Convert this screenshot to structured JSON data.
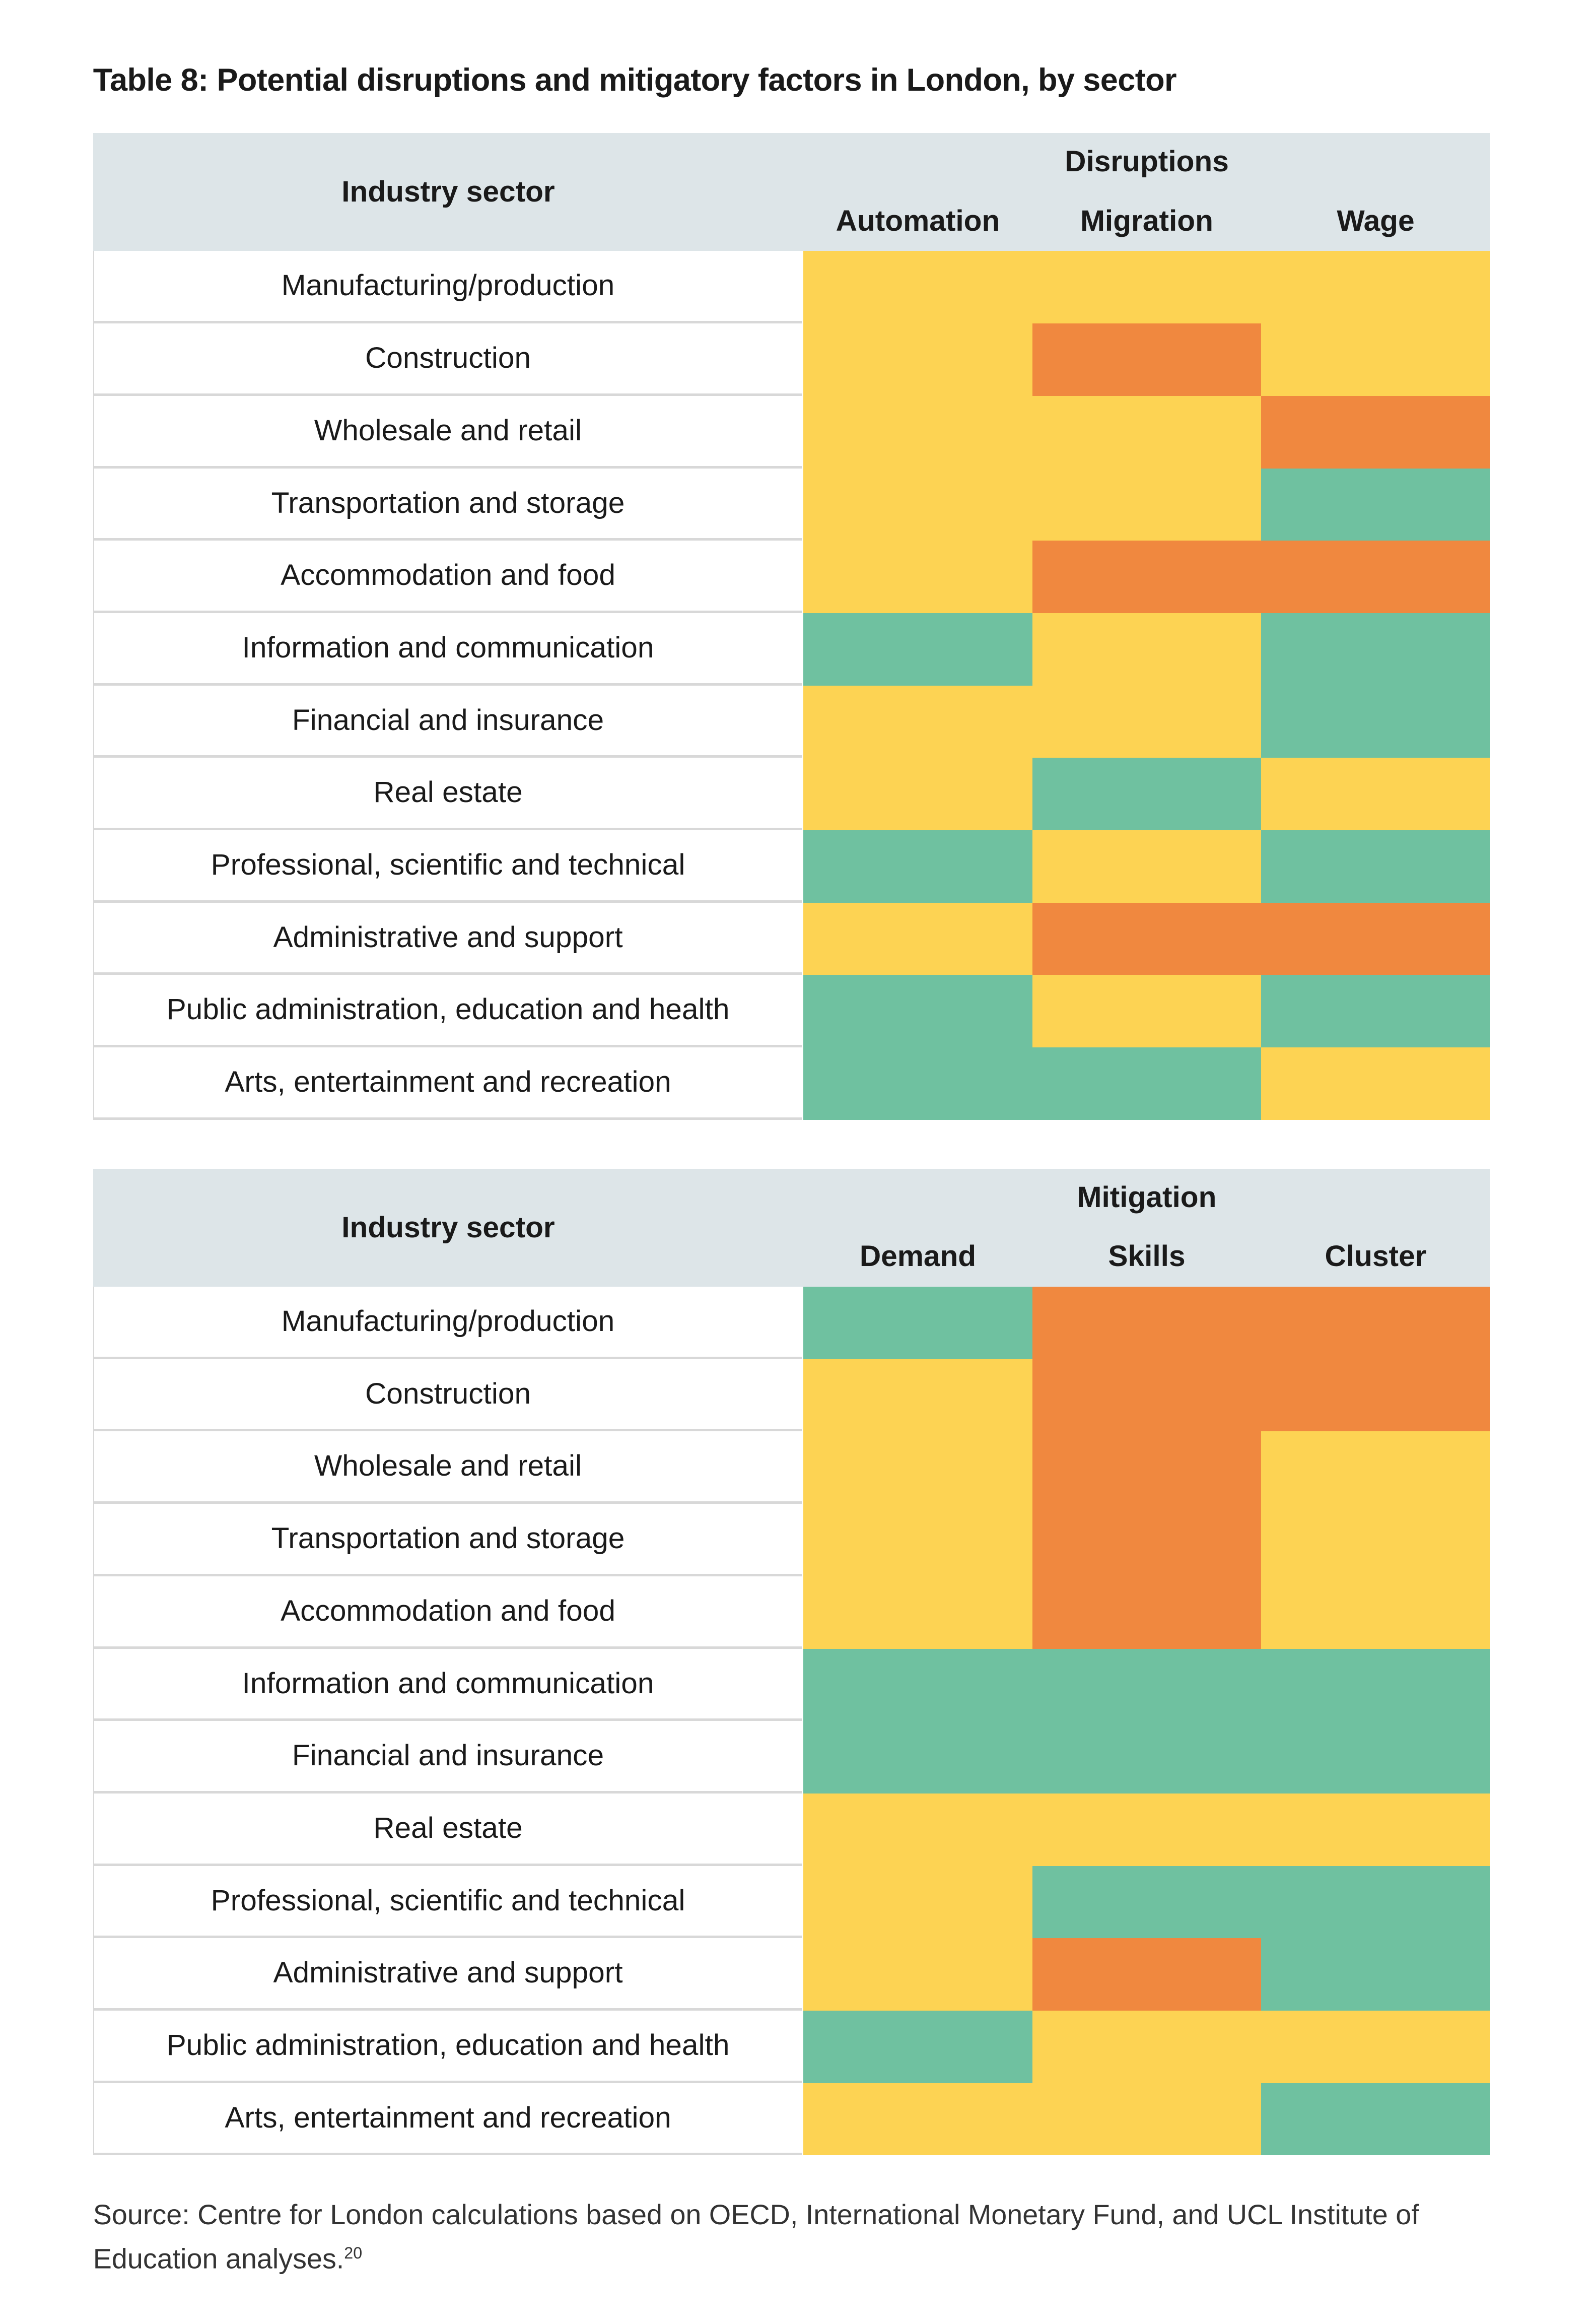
{
  "title": "Table 8: Potential disruptions and mitigatory factors in London, by sector",
  "colors": {
    "yellow": "#fdd353",
    "orange": "#f0883f",
    "green": "#6fc1a0",
    "header": "#dde5e8"
  },
  "tables": [
    {
      "sector_header": "Industry sector",
      "group": "Disruptions",
      "columns": [
        "Automation",
        "Migration",
        "Wage"
      ],
      "rows": [
        {
          "sector": "Manufacturing/production",
          "cells": [
            "yellow",
            "yellow",
            "yellow"
          ]
        },
        {
          "sector": "Construction",
          "cells": [
            "yellow",
            "orange",
            "yellow"
          ]
        },
        {
          "sector": "Wholesale and retail",
          "cells": [
            "yellow",
            "yellow",
            "orange"
          ]
        },
        {
          "sector": "Transportation and storage",
          "cells": [
            "yellow",
            "yellow",
            "green"
          ]
        },
        {
          "sector": "Accommodation and food",
          "cells": [
            "yellow",
            "orange",
            "orange"
          ]
        },
        {
          "sector": "Information and communication",
          "cells": [
            "green",
            "yellow",
            "green"
          ]
        },
        {
          "sector": "Financial and insurance",
          "cells": [
            "yellow",
            "yellow",
            "green"
          ]
        },
        {
          "sector": "Real estate",
          "cells": [
            "yellow",
            "green",
            "yellow"
          ]
        },
        {
          "sector": "Professional, scientific and technical",
          "cells": [
            "green",
            "yellow",
            "green"
          ]
        },
        {
          "sector": "Administrative and support",
          "cells": [
            "yellow",
            "orange",
            "orange"
          ]
        },
        {
          "sector": "Public administration, education and health",
          "cells": [
            "green",
            "yellow",
            "green"
          ]
        },
        {
          "sector": "Arts, entertainment and recreation",
          "cells": [
            "green",
            "green",
            "yellow"
          ]
        }
      ]
    },
    {
      "sector_header": "Industry sector",
      "group": "Mitigation",
      "columns": [
        "Demand",
        "Skills",
        "Cluster"
      ],
      "rows": [
        {
          "sector": "Manufacturing/production",
          "cells": [
            "green",
            "orange",
            "orange"
          ]
        },
        {
          "sector": "Construction",
          "cells": [
            "yellow",
            "orange",
            "orange"
          ]
        },
        {
          "sector": "Wholesale and retail",
          "cells": [
            "yellow",
            "orange",
            "yellow"
          ]
        },
        {
          "sector": "Transportation and storage",
          "cells": [
            "yellow",
            "orange",
            "yellow"
          ]
        },
        {
          "sector": "Accommodation and food",
          "cells": [
            "yellow",
            "orange",
            "yellow"
          ]
        },
        {
          "sector": "Information and communication",
          "cells": [
            "green",
            "green",
            "green"
          ]
        },
        {
          "sector": "Financial and insurance",
          "cells": [
            "green",
            "green",
            "green"
          ]
        },
        {
          "sector": "Real estate",
          "cells": [
            "yellow",
            "yellow",
            "yellow"
          ]
        },
        {
          "sector": "Professional, scientific and technical",
          "cells": [
            "yellow",
            "green",
            "green"
          ]
        },
        {
          "sector": "Administrative and support",
          "cells": [
            "yellow",
            "orange",
            "green"
          ]
        },
        {
          "sector": "Public administration, education and health",
          "cells": [
            "green",
            "yellow",
            "yellow"
          ]
        },
        {
          "sector": "Arts, entertainment and recreation",
          "cells": [
            "yellow",
            "yellow",
            "green"
          ]
        }
      ]
    }
  ],
  "source": {
    "text": "Source: Centre for London calculations based on OECD, International Monetary Fund, and UCL Institute of Education analyses.",
    "footnote": "20"
  }
}
